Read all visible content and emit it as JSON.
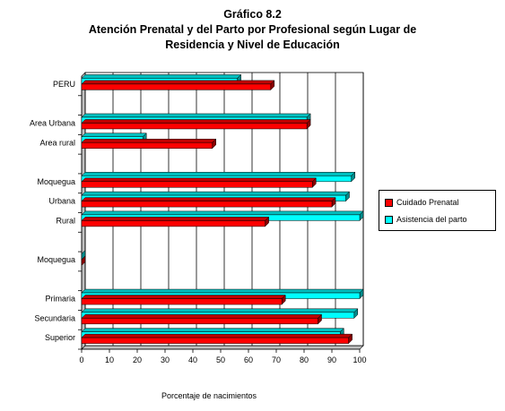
{
  "title_lines": [
    "Gráfico 8.2",
    "Atención Prenatal y del Parto por Profesional según Lugar de",
    "Residencia y Nivel de Educación"
  ],
  "chart_data": {
    "type": "bar",
    "orientation": "horizontal",
    "xlabel": "Porcentaje de nacimientos",
    "xlim": [
      0,
      100
    ],
    "xticks": [
      0,
      10,
      20,
      30,
      40,
      50,
      60,
      70,
      80,
      90,
      100
    ],
    "grid": true,
    "legend_position": "right",
    "categories": [
      "PERU",
      "",
      "Area Urbana",
      "Area rural",
      "",
      "Moquegua",
      "Urbana",
      "Rural",
      "",
      "Moquegua",
      "",
      "Primaria",
      "Secundaria",
      "Superior"
    ],
    "series": [
      {
        "name": "Cuidado Prenatal",
        "color": "#ff0000",
        "values": [
          68,
          null,
          81,
          47,
          null,
          83,
          90,
          66,
          null,
          0,
          null,
          72,
          85,
          96
        ]
      },
      {
        "name": "Asistencia del parto",
        "color": "#00ffff",
        "values": [
          56,
          null,
          81,
          22,
          null,
          97,
          95,
          100,
          null,
          0,
          null,
          100,
          98,
          93
        ]
      }
    ]
  }
}
